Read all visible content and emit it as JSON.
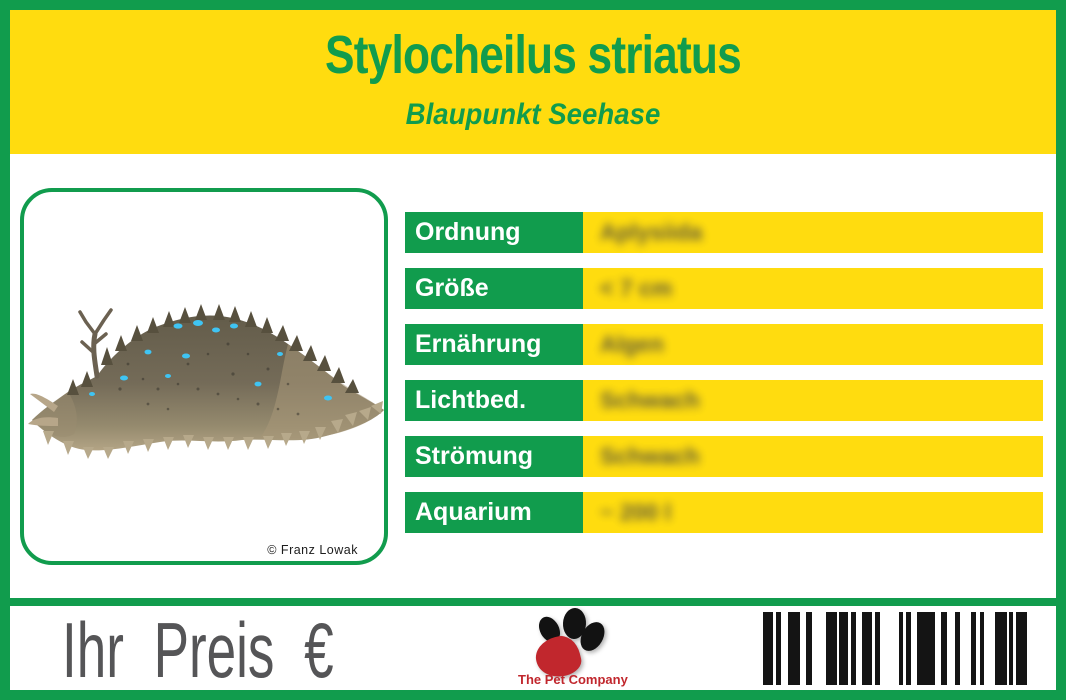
{
  "label": {
    "title": "Stylocheilus striatus",
    "subtitle": "Blaupunkt Seehase"
  },
  "photo": {
    "credit": "© Franz Lowak",
    "subject": "Blaupunkt Seehase (sea hare), dark spiky body with blue spots"
  },
  "info_table": {
    "rows": [
      {
        "label": "Ordnung",
        "value": "Aplysiida"
      },
      {
        "label": "Größe",
        "value": "< 7 cm"
      },
      {
        "label": "Ernährung",
        "value": "Algen"
      },
      {
        "label": "Lichtbed.",
        "value": "Schwach"
      },
      {
        "label": "Strömung",
        "value": "Schwach"
      },
      {
        "label": "Aquarium",
        "value": "~ 200 l"
      }
    ]
  },
  "footer": {
    "price_label": "Ihr Preis €",
    "brand_name": "The Pet Company"
  },
  "icons": {
    "paw": "paw-print-icon",
    "barcode": "barcode"
  },
  "colors": {
    "green": "#119c4d",
    "yellow": "#ffdc0f",
    "price_text": "#555557",
    "brand_red": "#c1272d",
    "value_text": "#4b4a40"
  },
  "barcode_bars": [
    [
      10,
      3
    ],
    [
      5,
      7
    ],
    [
      12,
      6
    ],
    [
      6,
      14
    ],
    [
      11,
      2
    ],
    [
      9,
      3
    ],
    [
      5,
      6
    ],
    [
      10,
      3
    ],
    [
      5,
      19
    ],
    [
      4,
      3
    ],
    [
      5,
      6
    ],
    [
      18,
      6
    ],
    [
      6,
      8
    ],
    [
      5,
      11
    ],
    [
      5,
      4
    ],
    [
      4,
      11
    ],
    [
      12,
      2
    ],
    [
      4,
      3
    ],
    [
      11,
      0
    ]
  ]
}
